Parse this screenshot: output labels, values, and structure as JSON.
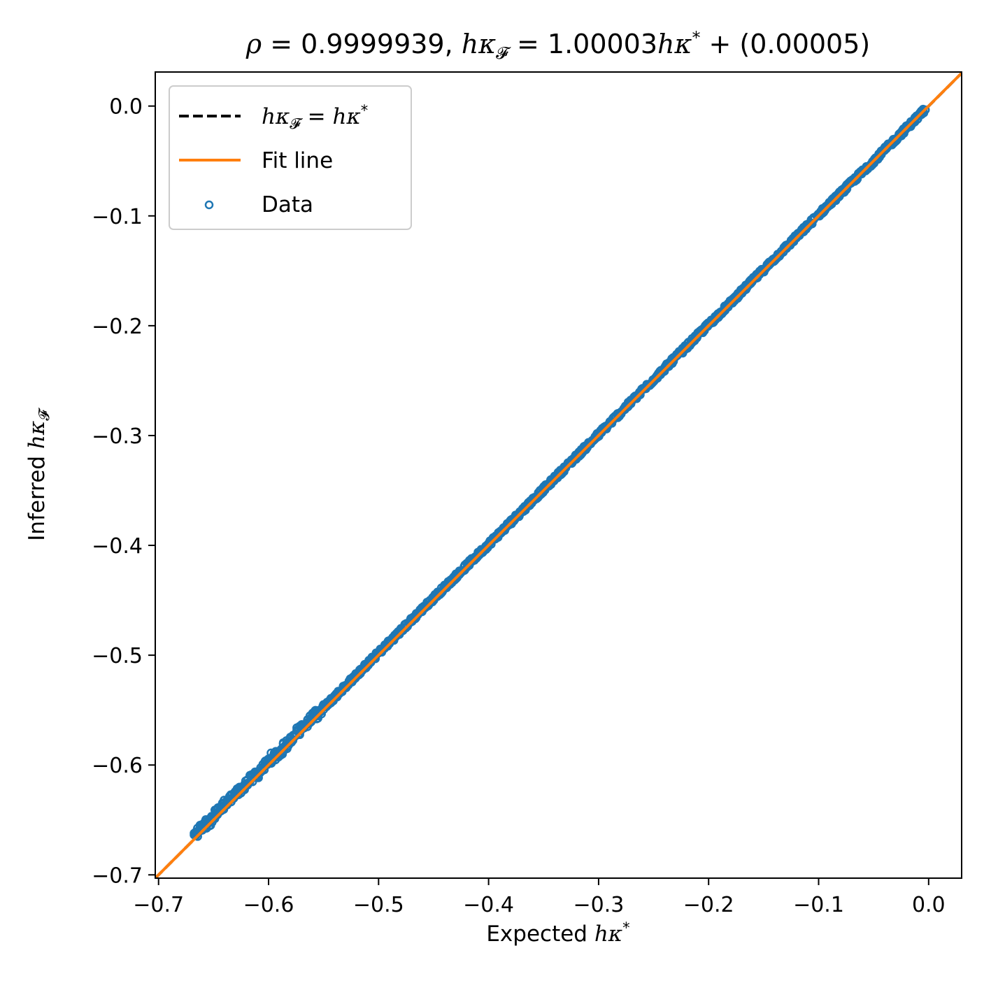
{
  "chart_data": {
    "type": "scatter",
    "title": {
      "pre": "ρ",
      "eq1": " = 0.9999939,   ",
      "lhs": "hκ",
      "lhs_sub": "𝓕",
      "eq2": " = 1.00003",
      "rhs": "hκ",
      "rhs_sup": "*",
      "tail": " + (0.00005)"
    },
    "xlabel": {
      "text": "Expected ",
      "math": "hκ",
      "sup": "*"
    },
    "ylabel": {
      "text": "Inferred ",
      "math": "hκ",
      "sub": "𝓕"
    },
    "xlim": [
      -0.703,
      0.03
    ],
    "ylim": [
      -0.703,
      0.031
    ],
    "xticks": [
      -0.7,
      -0.6,
      -0.5,
      -0.4,
      -0.3,
      -0.2,
      -0.1,
      0.0
    ],
    "xtick_labels": [
      "−0.7",
      "−0.6",
      "−0.5",
      "−0.4",
      "−0.3",
      "−0.2",
      "−0.1",
      "0.0"
    ],
    "yticks": [
      0.0,
      -0.1,
      -0.2,
      -0.3,
      -0.4,
      -0.5,
      -0.6,
      -0.7
    ],
    "ytick_labels": [
      "0.0",
      "−0.1",
      "−0.2",
      "−0.3",
      "−0.4",
      "−0.5",
      "−0.6",
      "−0.7"
    ],
    "legend": {
      "placement": "upper-left",
      "entries": [
        {
          "kind": "dashed-line",
          "color": "#000000",
          "math": "hκ",
          "sub": "𝓕",
          "mid": " = ",
          "math2": "hκ",
          "sup": "*"
        },
        {
          "kind": "line",
          "color": "#ff7f0e",
          "label": "Fit line"
        },
        {
          "kind": "marker",
          "color": "#1f77b4",
          "label": "Data"
        }
      ]
    },
    "identity_line": {
      "color": "#000000",
      "style": "dashed"
    },
    "fit_line": {
      "slope": 1.00003,
      "intercept": 5e-05,
      "color": "#ff7f0e"
    },
    "data_series": {
      "name": "Data",
      "color": "#1f77b4",
      "marker": "open-circle",
      "x_range": [
        -0.668,
        -0.003
      ],
      "approx_points": [
        [
          -0.668,
          -0.665
        ],
        [
          -0.66,
          -0.655
        ],
        [
          -0.65,
          -0.648
        ],
        [
          -0.64,
          -0.636
        ],
        [
          -0.62,
          -0.617
        ],
        [
          -0.6,
          -0.597
        ],
        [
          -0.58,
          -0.578
        ],
        [
          -0.56,
          -0.557
        ],
        [
          -0.54,
          -0.538
        ],
        [
          -0.52,
          -0.518
        ],
        [
          -0.5,
          -0.498
        ],
        [
          -0.45,
          -0.448
        ],
        [
          -0.4,
          -0.399
        ],
        [
          -0.35,
          -0.349
        ],
        [
          -0.3,
          -0.299
        ],
        [
          -0.25,
          -0.249
        ],
        [
          -0.2,
          -0.199
        ],
        [
          -0.15,
          -0.149
        ],
        [
          -0.1,
          -0.099
        ],
        [
          -0.05,
          -0.05
        ],
        [
          -0.003,
          -0.003
        ]
      ]
    }
  }
}
